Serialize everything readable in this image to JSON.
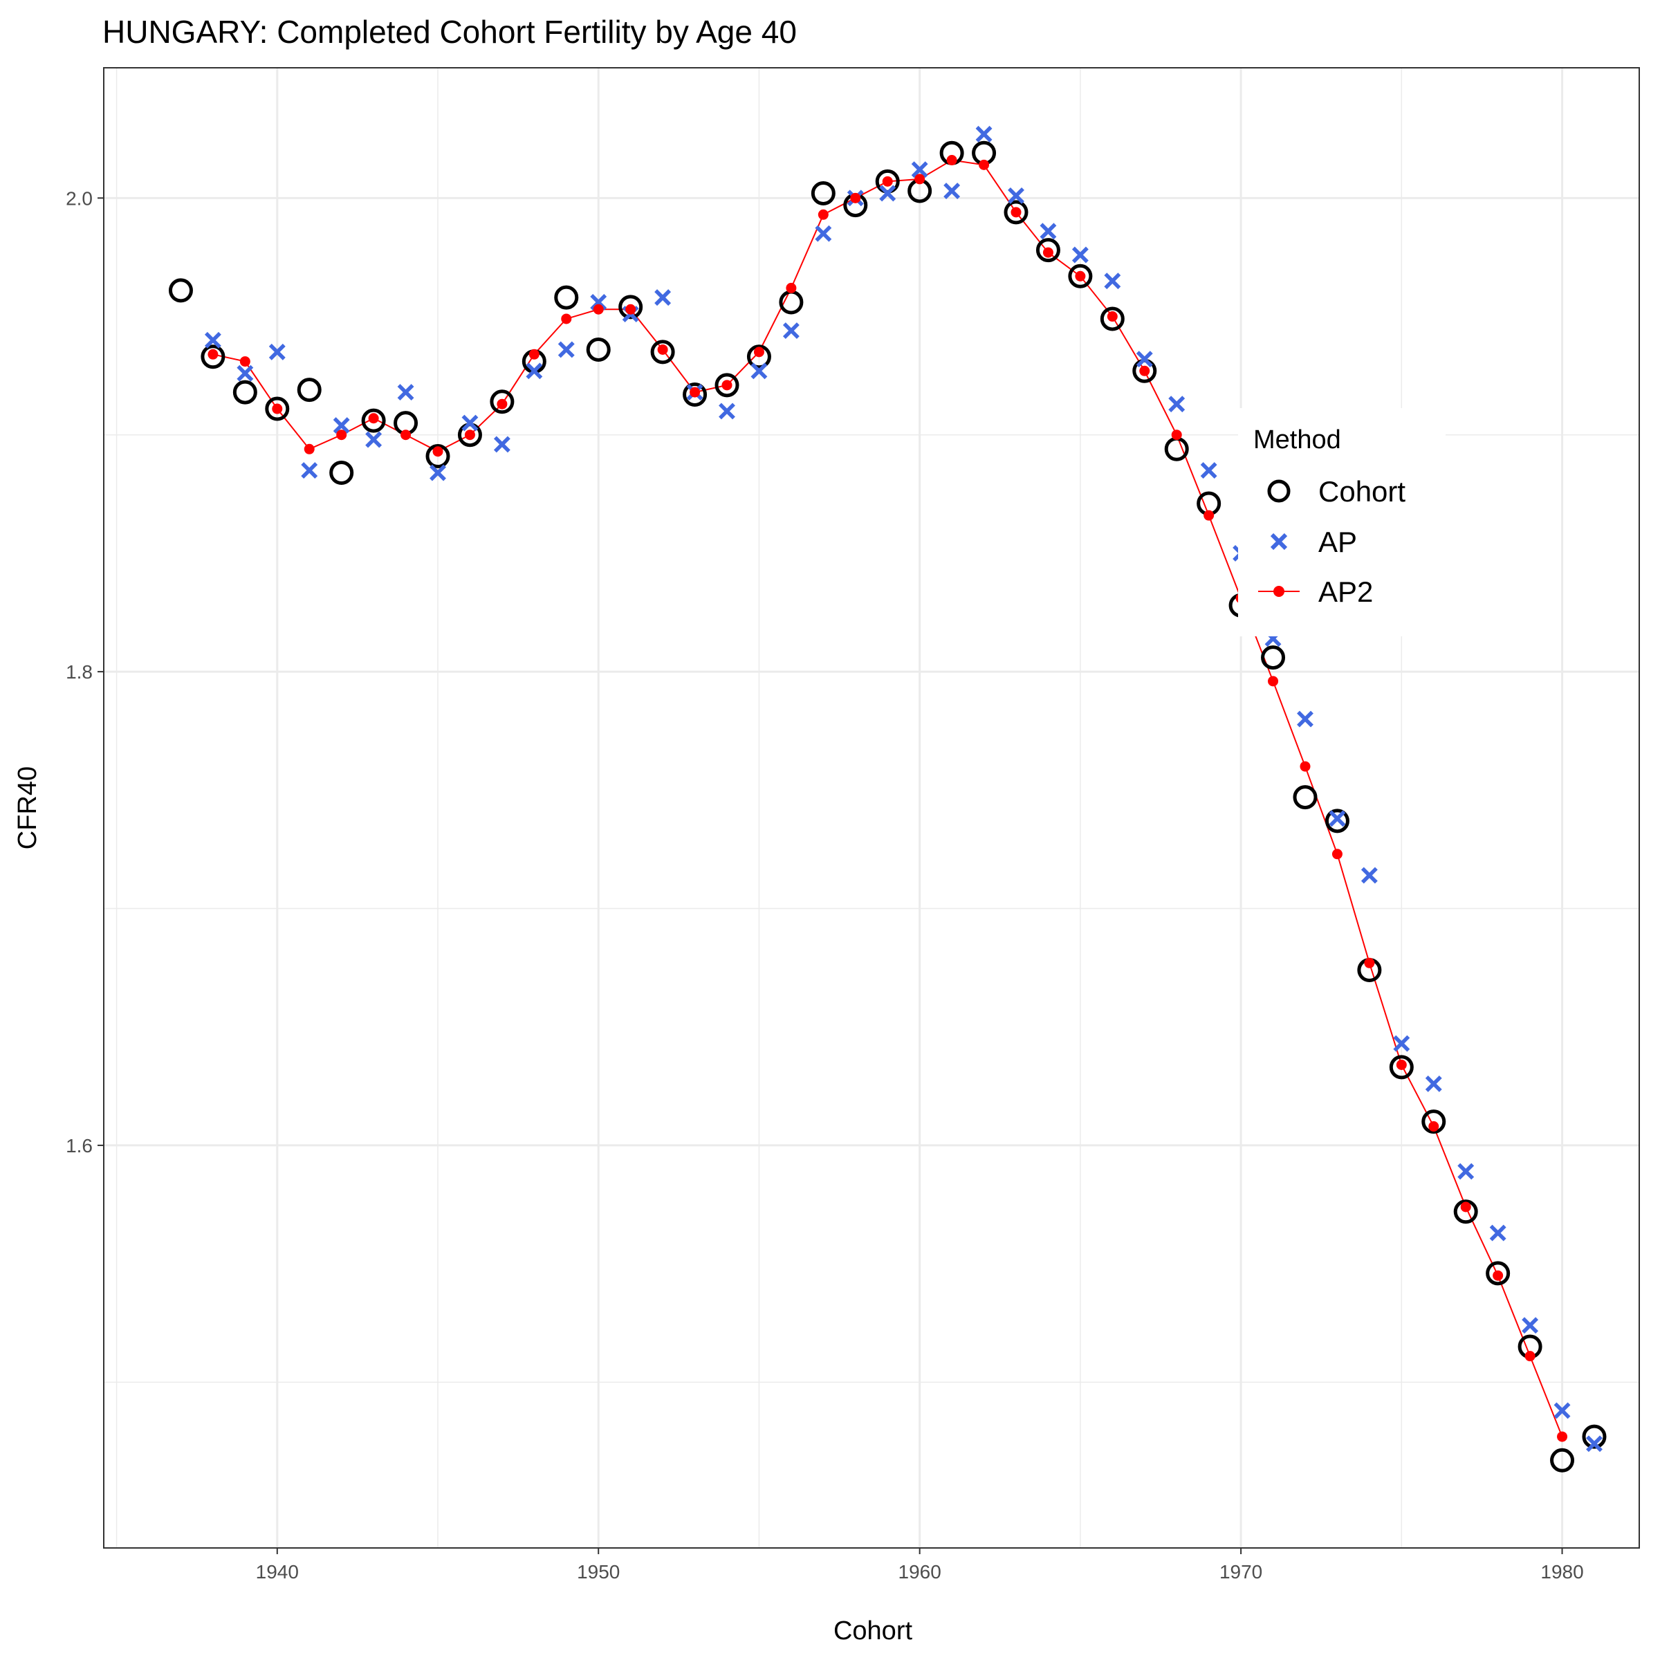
{
  "chart_data": {
    "type": "scatter",
    "title": "HUNGARY: Completed Cohort Fertility by Age 40",
    "xlabel": "Cohort",
    "ylabel": "CFR40",
    "xlim": [
      1934.6,
      1982.4
    ],
    "ylim": [
      1.43,
      2.055
    ],
    "x_ticks": [
      1940,
      1950,
      1960,
      1970,
      1980
    ],
    "y_ticks": [
      1.6,
      1.8,
      2.0
    ],
    "x_tick_labels": [
      "1940",
      "1950",
      "1960",
      "1970",
      "1980"
    ],
    "y_tick_labels": [
      "1.6",
      "1.8",
      "2.0"
    ],
    "grid": true,
    "legend": {
      "title": "Method",
      "position": "right",
      "entries": [
        "Cohort",
        "AP",
        "AP2"
      ]
    },
    "series": [
      {
        "name": "Cohort",
        "marker": "open-circle",
        "color": "#000000",
        "x": [
          1937,
          1938,
          1939,
          1940,
          1941,
          1942,
          1943,
          1944,
          1945,
          1946,
          1947,
          1948,
          1949,
          1950,
          1951,
          1952,
          1953,
          1954,
          1955,
          1956,
          1957,
          1958,
          1959,
          1960,
          1961,
          1962,
          1963,
          1964,
          1965,
          1966,
          1967,
          1968,
          1969,
          1970,
          1971,
          1972,
          1973,
          1974,
          1975,
          1976,
          1977,
          1978,
          1979,
          1980,
          1981
        ],
        "values": [
          1.961,
          1.933,
          1.918,
          1.911,
          1.919,
          1.884,
          1.906,
          1.905,
          1.891,
          1.9,
          1.914,
          1.931,
          1.958,
          1.936,
          1.954,
          1.935,
          1.917,
          1.921,
          1.933,
          1.956,
          2.002,
          1.997,
          2.007,
          2.003,
          2.019,
          2.019,
          1.994,
          1.978,
          1.967,
          1.949,
          1.927,
          1.894,
          1.871,
          1.828,
          1.806,
          1.747,
          1.737,
          1.674,
          1.633,
          1.61,
          1.572,
          1.546,
          1.515,
          1.467,
          1.477
        ]
      },
      {
        "name": "AP",
        "marker": "x",
        "color": "#4169e1",
        "x": [
          1938,
          1939,
          1940,
          1941,
          1942,
          1943,
          1944,
          1945,
          1946,
          1947,
          1948,
          1949,
          1950,
          1951,
          1952,
          1953,
          1954,
          1955,
          1956,
          1957,
          1958,
          1959,
          1960,
          1961,
          1962,
          1963,
          1964,
          1965,
          1966,
          1967,
          1968,
          1969,
          1970,
          1971,
          1972,
          1973,
          1974,
          1975,
          1976,
          1977,
          1978,
          1979,
          1980,
          1981
        ],
        "values": [
          1.94,
          1.926,
          1.935,
          1.885,
          1.904,
          1.898,
          1.918,
          1.884,
          1.905,
          1.896,
          1.927,
          1.936,
          1.956,
          1.951,
          1.958,
          1.918,
          1.91,
          1.927,
          1.944,
          1.985,
          2.0,
          2.002,
          2.012,
          2.003,
          2.027,
          2.001,
          1.986,
          1.976,
          1.965,
          1.932,
          1.913,
          1.885,
          1.85,
          1.814,
          1.78,
          1.738,
          1.714,
          1.643,
          1.626,
          1.589,
          1.563,
          1.524,
          1.488,
          1.474
        ]
      },
      {
        "name": "AP2",
        "marker": "dot-line",
        "color": "#ff0000",
        "x": [
          1938,
          1939,
          1940,
          1941,
          1942,
          1943,
          1944,
          1945,
          1946,
          1947,
          1948,
          1949,
          1950,
          1951,
          1952,
          1953,
          1954,
          1955,
          1956,
          1957,
          1958,
          1959,
          1960,
          1961,
          1962,
          1963,
          1964,
          1965,
          1966,
          1967,
          1968,
          1969,
          1970,
          1971,
          1972,
          1973,
          1974,
          1975,
          1976,
          1977,
          1978,
          1979,
          1980
        ],
        "values": [
          1.934,
          1.931,
          1.911,
          1.894,
          1.9,
          1.907,
          1.9,
          1.893,
          1.9,
          1.913,
          1.934,
          1.949,
          1.953,
          1.953,
          1.936,
          1.918,
          1.921,
          1.935,
          1.962,
          1.993,
          2.0,
          2.007,
          2.008,
          2.016,
          2.014,
          1.994,
          1.977,
          1.967,
          1.95,
          1.927,
          1.9,
          1.866,
          1.831,
          1.796,
          1.76,
          1.723,
          1.677,
          1.634,
          1.608,
          1.574,
          1.545,
          1.511,
          1.477
        ]
      }
    ]
  }
}
